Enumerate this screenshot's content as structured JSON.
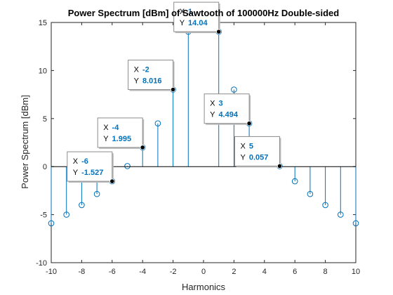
{
  "chart_data": {
    "type": "stem",
    "title": "Power Spectrum [dBm] of Sawtooth of 100000Hz Double-sided",
    "xlabel": "Harmonics",
    "ylabel": "Power Spectrum [dBm]",
    "xlim": [
      -10,
      10
    ],
    "ylim": [
      -10,
      15
    ],
    "xticks": [
      -10,
      -8,
      -6,
      -4,
      -2,
      0,
      2,
      4,
      6,
      8,
      10
    ],
    "yticks": [
      -10,
      -5,
      0,
      5,
      10,
      15
    ],
    "x": [
      -10,
      -9,
      -8,
      -7,
      -6,
      -5,
      -4,
      -3,
      -2,
      -1,
      1,
      2,
      3,
      4,
      5,
      6,
      7,
      8,
      9,
      10
    ],
    "y": [
      -5.9,
      -5.0,
      -4.0,
      -2.85,
      -1.527,
      0.057,
      1.995,
      4.494,
      8.016,
      14.04,
      14.04,
      8.016,
      4.494,
      1.995,
      0.057,
      -1.527,
      -2.85,
      -4.0,
      -5.0,
      -5.9
    ],
    "color": "#0072BD",
    "datatips": [
      {
        "x_label": "X",
        "x_value": "-6",
        "y_label": "Y",
        "y_value": "-1.527",
        "x": -6,
        "y": -1.527
      },
      {
        "x_label": "X",
        "x_value": "-4",
        "y_label": "Y",
        "y_value": "1.995",
        "x": -4,
        "y": 1.995
      },
      {
        "x_label": "X",
        "x_value": "-2",
        "y_label": "Y",
        "y_value": "8.016",
        "x": -2,
        "y": 8.016
      },
      {
        "x_label": "X",
        "x_value": "1",
        "y_label": "Y",
        "y_value": "14.04",
        "x": 1,
        "y": 14.04
      },
      {
        "x_label": "X",
        "x_value": "3",
        "y_label": "Y",
        "y_value": "4.494",
        "x": 3,
        "y": 4.494
      },
      {
        "x_label": "X",
        "x_value": "5",
        "y_label": "Y",
        "y_value": "0.057",
        "x": 5,
        "y": 0.057
      }
    ]
  }
}
